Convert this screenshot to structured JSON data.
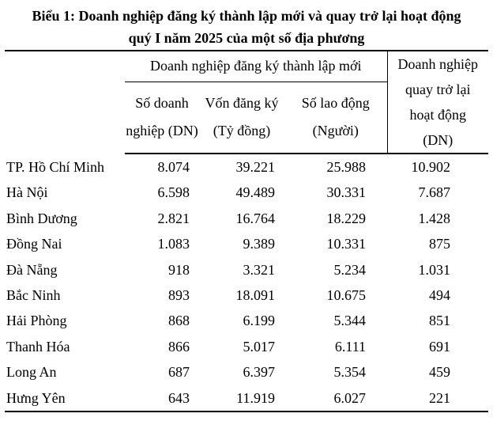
{
  "title": {
    "line1": "Biểu 1: Doanh nghiệp đăng ký thành lập mới và quay trở lại hoạt động",
    "line2": "quý I năm 2025 của một số địa phương"
  },
  "table": {
    "group_header": "Doanh nghiệp đăng ký thành lập mới",
    "sub_headers": [
      {
        "line1": "Số doanh",
        "line2": "nghiệp (DN)"
      },
      {
        "line1": "Vốn đăng ký",
        "line2": "(Tỷ đồng)"
      },
      {
        "line1": "Số lao động",
        "line2": "(Người)"
      }
    ],
    "return_header": {
      "line1": "Doanh nghiệp",
      "line2": "quay trở lại",
      "line3": "hoạt động",
      "line4": "(DN)"
    },
    "rows": [
      {
        "province": "TP. Hồ Chí Minh",
        "new_enterprises": "8.074",
        "registered_capital": "39.221",
        "labor": "25.988",
        "returning": "10.902"
      },
      {
        "province": "Hà Nội",
        "new_enterprises": "6.598",
        "registered_capital": "49.489",
        "labor": "30.331",
        "returning": "7.687"
      },
      {
        "province": "Bình Dương",
        "new_enterprises": "2.821",
        "registered_capital": "16.764",
        "labor": "18.229",
        "returning": "1.428"
      },
      {
        "province": "Đồng Nai",
        "new_enterprises": "1.083",
        "registered_capital": "9.389",
        "labor": "10.331",
        "returning": "875"
      },
      {
        "province": "Đà Nẵng",
        "new_enterprises": "918",
        "registered_capital": "3.321",
        "labor": "5.234",
        "returning": "1.031"
      },
      {
        "province": "Bắc Ninh",
        "new_enterprises": "893",
        "registered_capital": "18.091",
        "labor": "10.675",
        "returning": "494"
      },
      {
        "province": "Hải Phòng",
        "new_enterprises": "868",
        "registered_capital": "6.199",
        "labor": "5.344",
        "returning": "851"
      },
      {
        "province": "Thanh Hóa",
        "new_enterprises": "866",
        "registered_capital": "5.017",
        "labor": "6.111",
        "returning": "691"
      },
      {
        "province": "Long An",
        "new_enterprises": "687",
        "registered_capital": "6.397",
        "labor": "5.354",
        "returning": "459"
      },
      {
        "province": "Hưng Yên",
        "new_enterprises": "643",
        "registered_capital": "11.919",
        "labor": "6.027",
        "returning": "221"
      }
    ]
  }
}
